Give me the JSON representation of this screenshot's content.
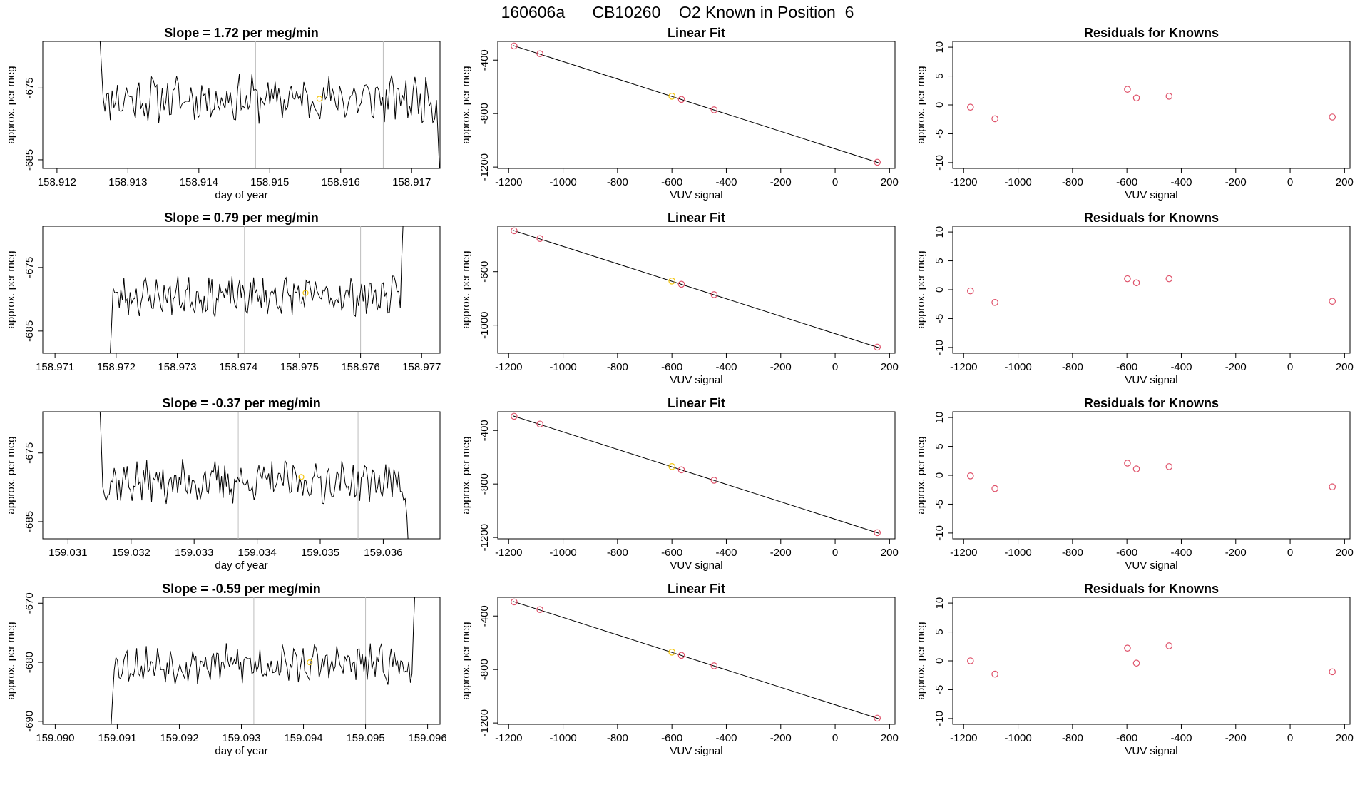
{
  "page_title": "160606a      CB10260    O2 Known in Position  6",
  "colors": {
    "line": "#000000",
    "grid": "#bebebe",
    "point": "#df536b",
    "highlight": "#f5c710",
    "frame": "#000000"
  },
  "chart_data": [
    {
      "type": "line",
      "row": 1,
      "title": "Slope =  1.72  per meg/min",
      "xlabel": "day of year",
      "ylabel": "approx. per meg",
      "xlim": [
        158.9118,
        158.9174
      ],
      "ylim": [
        -686.2,
        -668.5
      ],
      "xticks": [
        158.912,
        158.913,
        158.914,
        158.915,
        158.916,
        158.917
      ],
      "xtick_labels": [
        "158.912",
        "158.913",
        "158.914",
        "158.915",
        "158.916",
        "158.917"
      ],
      "yticks": [
        -675,
        -685
      ],
      "ytick_labels": [
        "-675",
        "-685"
      ],
      "vlines": [
        158.9148,
        158.9166
      ],
      "highlight_point": {
        "x": 158.9157,
        "y": -676.5
      },
      "x_start": 158.9126,
      "x_end": 158.9174,
      "seed": 11,
      "base": -676.5,
      "amp": 2.6,
      "pre": -667,
      "post": -688
    },
    {
      "type": "scatter",
      "row": 1,
      "title": "Linear Fit",
      "xlabel": "VUV signal",
      "ylabel": "approx. per meg",
      "xlim": [
        -1240,
        220
      ],
      "ylim": [
        -1210,
        -260
      ],
      "xticks": [
        -1200,
        -1000,
        -800,
        -600,
        -400,
        -200,
        0,
        200
      ],
      "xtick_labels": [
        "-1200",
        "-1000",
        "-800",
        "-600",
        "-400",
        "-200",
        "0",
        "200"
      ],
      "yticks": [
        -400,
        -800,
        -1200
      ],
      "ytick_labels": [
        "-400",
        "-800",
        "-1200"
      ],
      "points": [
        {
          "x": -1180,
          "y": -294
        },
        {
          "x": -1085,
          "y": -352
        },
        {
          "x": -600,
          "y": -670
        },
        {
          "x": -565,
          "y": -694
        },
        {
          "x": -445,
          "y": -772
        },
        {
          "x": 155,
          "y": -1164
        }
      ],
      "highlight_index": 2,
      "fit_line": {
        "x": [
          -1185,
          160
        ],
        "y": [
          -290,
          -1168
        ]
      }
    },
    {
      "type": "scatter",
      "row": 1,
      "title": "Residuals for Knowns",
      "xlabel": "VUV signal",
      "ylabel": "approx. per meg",
      "xlim": [
        -1240,
        220
      ],
      "ylim": [
        -11,
        11
      ],
      "xticks": [
        -1200,
        -1000,
        -800,
        -600,
        -400,
        -200,
        0,
        200
      ],
      "xtick_labels": [
        "-1200",
        "-1000",
        "-800",
        "-600",
        "-400",
        "-200",
        "0",
        "200"
      ],
      "yticks": [
        10,
        5,
        0,
        -5,
        -10
      ],
      "ytick_labels": [
        "10",
        "5",
        "0",
        "-5",
        "-10"
      ],
      "points": [
        {
          "x": -1175,
          "y": -0.4
        },
        {
          "x": -1085,
          "y": -2.4
        },
        {
          "x": -598,
          "y": 2.7
        },
        {
          "x": -565,
          "y": 1.2
        },
        {
          "x": -445,
          "y": 1.5
        },
        {
          "x": 155,
          "y": -2.1
        }
      ]
    },
    {
      "type": "line",
      "row": 2,
      "title": "Slope =  0.79  per meg/min",
      "xlabel": "",
      "ylabel": "approx. per meg",
      "xlim": [
        158.9708,
        158.9773
      ],
      "ylim": [
        -688.5,
        -668.5
      ],
      "xticks": [
        158.971,
        158.972,
        158.973,
        158.974,
        158.975,
        158.976,
        158.977
      ],
      "xtick_labels": [
        "158.971",
        "158.972",
        "158.973",
        "158.974",
        "158.975",
        "158.976",
        "158.977"
      ],
      "yticks": [
        -675,
        -685
      ],
      "ytick_labels": [
        "-675",
        "-685"
      ],
      "vlines": [
        158.9741,
        158.976
      ],
      "highlight_point": {
        "x": 158.9751,
        "y": -679.0
      },
      "x_start": 158.9719,
      "x_end": 158.9767,
      "seed": 23,
      "base": -679.5,
      "amp": 2.4,
      "pre": -689,
      "post": -667
    },
    {
      "type": "scatter",
      "row": 2,
      "title": "Linear Fit",
      "xlabel": "VUV signal",
      "ylabel": "approx. per meg",
      "xlim": [
        -1240,
        220
      ],
      "ylim": [
        -1210,
        -260
      ],
      "xticks": [
        -1200,
        -1000,
        -800,
        -600,
        -400,
        -200,
        0,
        200
      ],
      "xtick_labels": [
        "-1200",
        "-1000",
        "-800",
        "-600",
        "-400",
        "-200",
        "0",
        "200"
      ],
      "yticks": [
        -600,
        -1000
      ],
      "ytick_labels": [
        "-600",
        "-1000"
      ],
      "points": [
        {
          "x": -1180,
          "y": -294
        },
        {
          "x": -1085,
          "y": -352
        },
        {
          "x": -600,
          "y": -670
        },
        {
          "x": -565,
          "y": -694
        },
        {
          "x": -445,
          "y": -772
        },
        {
          "x": 155,
          "y": -1164
        }
      ],
      "highlight_index": 2,
      "fit_line": {
        "x": [
          -1185,
          160
        ],
        "y": [
          -290,
          -1168
        ]
      }
    },
    {
      "type": "scatter",
      "row": 2,
      "title": "Residuals for Knowns",
      "xlabel": "VUV signal",
      "ylabel": "approx. per meg",
      "xlim": [
        -1240,
        220
      ],
      "ylim": [
        -11,
        11
      ],
      "xticks": [
        -1200,
        -1000,
        -800,
        -600,
        -400,
        -200,
        0,
        200
      ],
      "xtick_labels": [
        "-1200",
        "-1000",
        "-800",
        "-600",
        "-400",
        "-200",
        "0",
        "200"
      ],
      "yticks": [
        10,
        5,
        0,
        -5,
        -10
      ],
      "ytick_labels": [
        "10",
        "5",
        "0",
        "-5",
        "-10"
      ],
      "points": [
        {
          "x": -1175,
          "y": -0.2
        },
        {
          "x": -1085,
          "y": -2.2
        },
        {
          "x": -598,
          "y": 1.9
        },
        {
          "x": -565,
          "y": 1.2
        },
        {
          "x": -445,
          "y": 1.9
        },
        {
          "x": 155,
          "y": -2.0
        }
      ]
    },
    {
      "type": "line",
      "row": 3,
      "title": "Slope =  -0.37  per meg/min",
      "xlabel": "day of year",
      "ylabel": "approx. per meg",
      "xlim": [
        159.0306,
        159.0369
      ],
      "ylim": [
        -687.5,
        -669.0
      ],
      "xticks": [
        159.031,
        159.032,
        159.033,
        159.034,
        159.035,
        159.036
      ],
      "xtick_labels": [
        "159.031",
        "159.032",
        "159.033",
        "159.034",
        "159.035",
        "159.036"
      ],
      "yticks": [
        -675,
        -685
      ],
      "ytick_labels": [
        "-675",
        "-685"
      ],
      "vlines": [
        159.0337,
        159.0356
      ],
      "highlight_point": {
        "x": 159.0347,
        "y": -678.5
      },
      "x_start": 159.0315,
      "x_end": 159.0364,
      "seed": 37,
      "base": -679.2,
      "amp": 2.5,
      "pre": -667,
      "post": -689
    },
    {
      "type": "scatter",
      "row": 3,
      "title": "Linear Fit",
      "xlabel": "VUV signal",
      "ylabel": "approx. per meg",
      "xlim": [
        -1240,
        220
      ],
      "ylim": [
        -1210,
        -260
      ],
      "xticks": [
        -1200,
        -1000,
        -800,
        -600,
        -400,
        -200,
        0,
        200
      ],
      "xtick_labels": [
        "-1200",
        "-1000",
        "-800",
        "-600",
        "-400",
        "-200",
        "0",
        "200"
      ],
      "yticks": [
        -400,
        -800,
        -1200
      ],
      "ytick_labels": [
        "-400",
        "-800",
        "-1200"
      ],
      "points": [
        {
          "x": -1180,
          "y": -294
        },
        {
          "x": -1085,
          "y": -352
        },
        {
          "x": -600,
          "y": -670
        },
        {
          "x": -565,
          "y": -694
        },
        {
          "x": -445,
          "y": -772
        },
        {
          "x": 155,
          "y": -1164
        }
      ],
      "highlight_index": 2,
      "fit_line": {
        "x": [
          -1185,
          160
        ],
        "y": [
          -290,
          -1168
        ]
      }
    },
    {
      "type": "scatter",
      "row": 3,
      "title": "Residuals for Knowns",
      "xlabel": "VUV signal",
      "ylabel": "approx. per meg",
      "xlim": [
        -1240,
        220
      ],
      "ylim": [
        -11,
        11
      ],
      "xticks": [
        -1200,
        -1000,
        -800,
        -600,
        -400,
        -200,
        0,
        200
      ],
      "xtick_labels": [
        "-1200",
        "-1000",
        "-800",
        "-600",
        "-400",
        "-200",
        "0",
        "200"
      ],
      "yticks": [
        10,
        5,
        0,
        -5,
        -10
      ],
      "ytick_labels": [
        "10",
        "5",
        "0",
        "-5",
        "-10"
      ],
      "points": [
        {
          "x": -1175,
          "y": -0.1
        },
        {
          "x": -1085,
          "y": -2.3
        },
        {
          "x": -598,
          "y": 2.1
        },
        {
          "x": -565,
          "y": 1.1
        },
        {
          "x": -445,
          "y": 1.5
        },
        {
          "x": 155,
          "y": -2.0
        }
      ]
    },
    {
      "type": "line",
      "row": 4,
      "title": "Slope =  -0.59  per meg/min",
      "xlabel": "day of year",
      "ylabel": "approx. per meg",
      "xlim": [
        159.0898,
        159.0962
      ],
      "ylim": [
        -690.5,
        -669.0
      ],
      "xticks": [
        159.09,
        159.091,
        159.092,
        159.093,
        159.094,
        159.095,
        159.096
      ],
      "xtick_labels": [
        "159.090",
        "159.091",
        "159.092",
        "159.093",
        "159.094",
        "159.095",
        "159.096"
      ],
      "yticks": [
        -670,
        -680,
        -690
      ],
      "ytick_labels": [
        "-670",
        "-680",
        "-690"
      ],
      "vlines": [
        159.0932,
        159.095
      ],
      "highlight_point": {
        "x": 159.0941,
        "y": -680.0
      },
      "x_start": 159.0909,
      "x_end": 159.0958,
      "seed": 53,
      "base": -680.3,
      "amp": 2.6,
      "pre": -691,
      "post": -667
    },
    {
      "type": "scatter",
      "row": 4,
      "title": "Linear Fit",
      "xlabel": "VUV signal",
      "ylabel": "approx. per meg",
      "xlim": [
        -1240,
        220
      ],
      "ylim": [
        -1210,
        -260
      ],
      "xticks": [
        -1200,
        -1000,
        -800,
        -600,
        -400,
        -200,
        0,
        200
      ],
      "xtick_labels": [
        "-1200",
        "-1000",
        "-800",
        "-600",
        "-400",
        "-200",
        "0",
        "200"
      ],
      "yticks": [
        -400,
        -800,
        -1200
      ],
      "ytick_labels": [
        "-400",
        "-800",
        "-1200"
      ],
      "points": [
        {
          "x": -1180,
          "y": -294
        },
        {
          "x": -1085,
          "y": -352
        },
        {
          "x": -600,
          "y": -670
        },
        {
          "x": -565,
          "y": -694
        },
        {
          "x": -445,
          "y": -772
        },
        {
          "x": 155,
          "y": -1164
        }
      ],
      "highlight_index": 2,
      "fit_line": {
        "x": [
          -1185,
          160
        ],
        "y": [
          -290,
          -1168
        ]
      }
    },
    {
      "type": "scatter",
      "row": 4,
      "title": "Residuals for Knowns",
      "xlabel": "VUV signal",
      "ylabel": "approx. per meg",
      "xlim": [
        -1240,
        220
      ],
      "ylim": [
        -11,
        11
      ],
      "xticks": [
        -1200,
        -1000,
        -800,
        -600,
        -400,
        -200,
        0,
        200
      ],
      "xtick_labels": [
        "-1200",
        "-1000",
        "-800",
        "-600",
        "-400",
        "-200",
        "0",
        "200"
      ],
      "yticks": [
        10,
        5,
        0,
        -5,
        -10
      ],
      "ytick_labels": [
        "10",
        "5",
        "0",
        "-5",
        "-10"
      ],
      "points": [
        {
          "x": -1175,
          "y": 0.0
        },
        {
          "x": -1085,
          "y": -2.3
        },
        {
          "x": -598,
          "y": 2.2
        },
        {
          "x": -565,
          "y": -0.4
        },
        {
          "x": -445,
          "y": 2.6
        },
        {
          "x": 155,
          "y": -1.9
        }
      ]
    }
  ]
}
